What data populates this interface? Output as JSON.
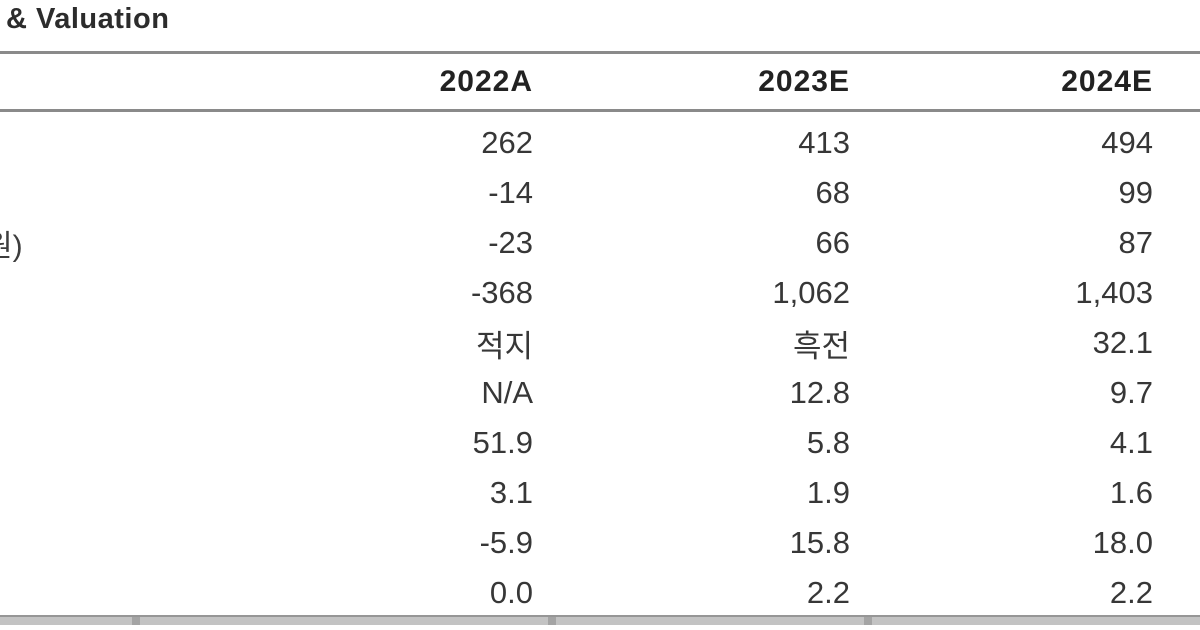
{
  "title": {
    "text": "& Valuation"
  },
  "table": {
    "columns": [
      "2022A",
      "2023E",
      "2024E"
    ],
    "rows": [
      {
        "values": [
          "262",
          "413",
          "494"
        ]
      },
      {
        "values": [
          "-14",
          "68",
          "99"
        ]
      },
      {
        "label_fragment": "원)",
        "values": [
          "-23",
          "66",
          "87"
        ]
      },
      {
        "values": [
          "-368",
          "1,062",
          "1,403"
        ]
      },
      {
        "values": [
          "적지",
          "흑전",
          "32.1"
        ]
      },
      {
        "values": [
          "N/A",
          "12.8",
          "9.7"
        ]
      },
      {
        "values": [
          "51.9",
          "5.8",
          "4.1"
        ]
      },
      {
        "values": [
          "3.1",
          "1.9",
          "1.6"
        ]
      },
      {
        "values": [
          "-5.9",
          "15.8",
          "18.0"
        ]
      },
      {
        "values": [
          "0.0",
          "2.2",
          "2.2"
        ]
      }
    ]
  },
  "colors": {
    "background": "#ffffff",
    "text": "#373737",
    "header_text": "#222222",
    "rule": "#8a8a8a",
    "bottom_band": "#c3c3c3"
  }
}
